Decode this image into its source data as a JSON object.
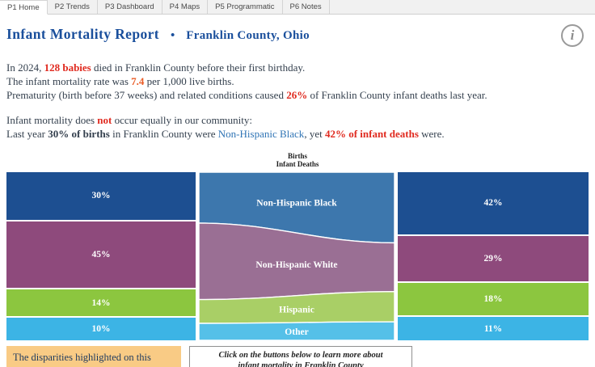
{
  "tabs": {
    "items": [
      {
        "label": "P1 Home",
        "selected": true
      },
      {
        "label": "P2 Trends",
        "selected": false
      },
      {
        "label": "P3 Dashboard",
        "selected": false
      },
      {
        "label": "P4 Maps",
        "selected": false
      },
      {
        "label": "P5 Programmatic",
        "selected": false
      },
      {
        "label": "P6 Notes",
        "selected": false
      }
    ]
  },
  "header": {
    "title": "Infant Mortality Report",
    "bullet": "•",
    "subtitle": "Franklin County, Ohio",
    "info_icon": "i"
  },
  "intro": {
    "l1_a": "In 2024, ",
    "l1_b": "128 babies",
    "l1_c": " died in Franklin County before their first birthday.",
    "l2_a": "The infant mortality rate was ",
    "l2_b": "7.4",
    "l2_c": " per 1,000 live births.",
    "l3_a": "Prematurity (birth before 37 weeks) and related conditions caused ",
    "l3_b": "26%",
    "l3_c": " of Franklin County infant deaths last year."
  },
  "equity": {
    "l1_a": "Infant mortality does ",
    "l1_b": "not",
    "l1_c": " occur equally in our community:",
    "l2_a": "Last year ",
    "l2_b": "30% of births",
    "l2_c": " in Franklin County were ",
    "l2_d": "Non-Hispanic Black",
    "l2_e": ", yet ",
    "l2_f": "42% of infant deaths",
    "l2_g": " were."
  },
  "chart_data": {
    "type": "area",
    "middle_header": [
      "Births",
      "Infant Deaths"
    ],
    "categories": [
      "Non-Hispanic Black",
      "Non-Hispanic White",
      "Hispanic",
      "Other"
    ],
    "series": [
      {
        "name": "Births",
        "values": [
          30,
          45,
          14,
          10
        ]
      },
      {
        "name": "Infant Deaths",
        "values": [
          42,
          29,
          18,
          11
        ]
      }
    ],
    "unit": "%",
    "colors": [
      "#1d4f91",
      "#8e4a7c",
      "#8cc63f",
      "#3cb4e5"
    ],
    "flow_colors": [
      "#3d77ad",
      "#9a6f94",
      "#a9cf66",
      "#55c0e8"
    ]
  },
  "footer": {
    "note": "The disparities highlighted on this",
    "cta_line1": "Click on the buttons below to learn more about",
    "cta_line2": "infant mortality in Franklin County"
  },
  "colors": {
    "title_blue": "#1a4f9c",
    "accent_red": "#e02a1f",
    "accent_orange": "#ea5b25",
    "link_blue": "#2f74b5",
    "note_bg": "#f9cb85"
  }
}
